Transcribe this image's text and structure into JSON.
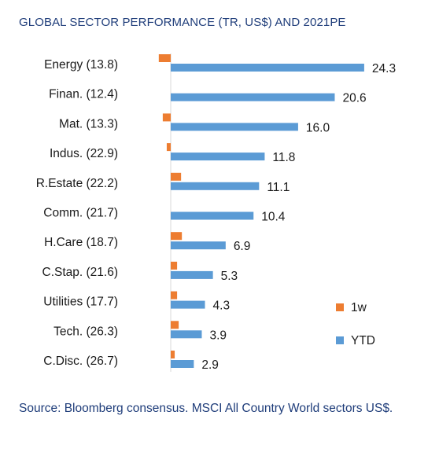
{
  "chart_data": {
    "type": "bar",
    "orientation": "horizontal",
    "title": "GLOBAL SECTOR PERFORMANCE (TR, US$) AND 2021PE",
    "categories": [
      "Energy (13.8)",
      "Finan. (12.4)",
      "Mat. (13.3)",
      "Indus. (22.9)",
      "R.Estate (22.2)",
      "Comm. (21.7)",
      "H.Care (18.7)",
      "C.Stap. (21.6)",
      "Utilities (17.7)",
      "Tech. (26.3)",
      "C.Disc. (26.7)"
    ],
    "series": [
      {
        "name": "1w",
        "color": "#ed7d31",
        "values": [
          -1.5,
          0.0,
          -1.0,
          -0.5,
          1.3,
          0.0,
          1.4,
          0.8,
          0.8,
          1.0,
          0.5
        ]
      },
      {
        "name": "YTD",
        "color": "#5b9bd5",
        "values": [
          24.3,
          20.6,
          16.0,
          11.8,
          11.1,
          10.4,
          6.9,
          5.3,
          4.3,
          3.9,
          2.9
        ]
      }
    ],
    "data_labels": [
      "24.3",
      "20.6",
      "16.0",
      "11.8",
      "11.1",
      "10.4",
      "6.9",
      "5.3",
      "4.3",
      "3.9",
      "2.9"
    ],
    "legend_position": "right",
    "grid": false
  },
  "source_note": "Source: Bloomberg consensus. MSCI All Country World sectors US$."
}
